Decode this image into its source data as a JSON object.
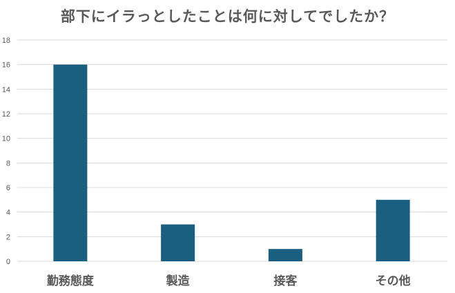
{
  "chart_data": {
    "type": "bar",
    "title": "部下にイラっとしたことは何に対してでしたか？",
    "categories": [
      "勤務態度",
      "製造",
      "接客",
      "その他"
    ],
    "values": [
      16,
      3,
      1,
      5
    ],
    "xlabel": "",
    "ylabel": "",
    "ylim": [
      0,
      18
    ],
    "yticks": [
      0,
      2,
      4,
      6,
      8,
      10,
      12,
      14,
      16,
      18
    ],
    "grid": true,
    "legend": "none",
    "bar_color": "#1a5e80",
    "gridline_color": "#d9d9d9"
  }
}
